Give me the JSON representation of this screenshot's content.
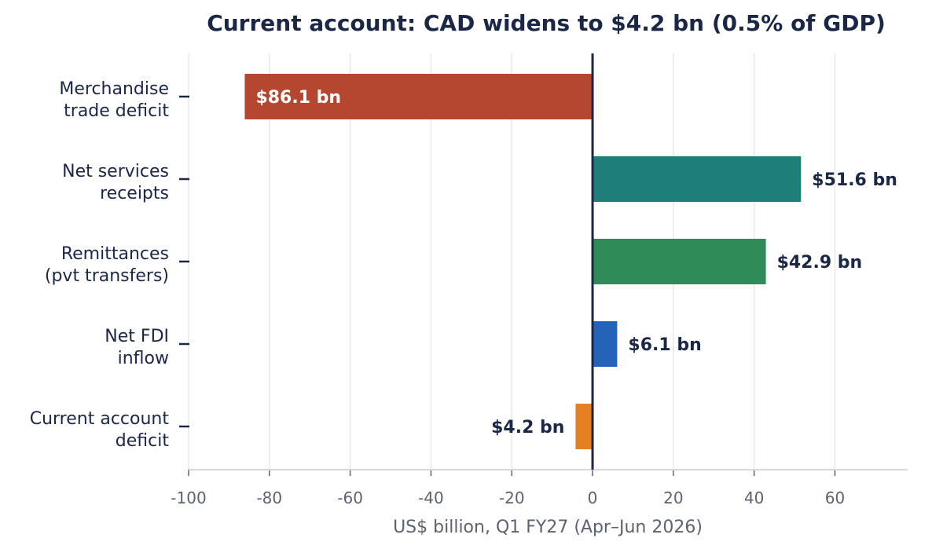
{
  "chart_data": {
    "type": "bar",
    "orientation": "horizontal",
    "title": "Current account: CAD widens to $4.2 bn (0.5% of GDP)",
    "xlabel": "US$ billion, Q1 FY27 (Apr–Jun 2026)",
    "ylabel": "",
    "xlim": [
      -100,
      78
    ],
    "xticks": [
      -100,
      -80,
      -60,
      -40,
      -20,
      0,
      20,
      40,
      60
    ],
    "grid": "vertical",
    "categories": [
      [
        "Merchandise",
        "trade deficit"
      ],
      [
        "Net services",
        "receipts"
      ],
      [
        "Remittances",
        "(pvt transfers)"
      ],
      [
        "Net FDI",
        "inflow"
      ],
      [
        "Current account",
        "deficit"
      ]
    ],
    "values": [
      -86.1,
      51.6,
      42.9,
      6.1,
      -4.2
    ],
    "data_labels": [
      "$86.1 bn",
      "$51.6 bn",
      "$42.9 bn",
      "$6.1 bn",
      "$4.2 bn"
    ],
    "colors": [
      "#b5462f",
      "#1e7e78",
      "#2e8b57",
      "#2563bb",
      "#e67e22"
    ],
    "label_colors": [
      "#ffffff",
      "#1a2747",
      "#1a2747",
      "#1a2747",
      "#1a2747"
    ],
    "label_placement": [
      "inside-left",
      "outside",
      "outside",
      "outside",
      "outside"
    ]
  }
}
